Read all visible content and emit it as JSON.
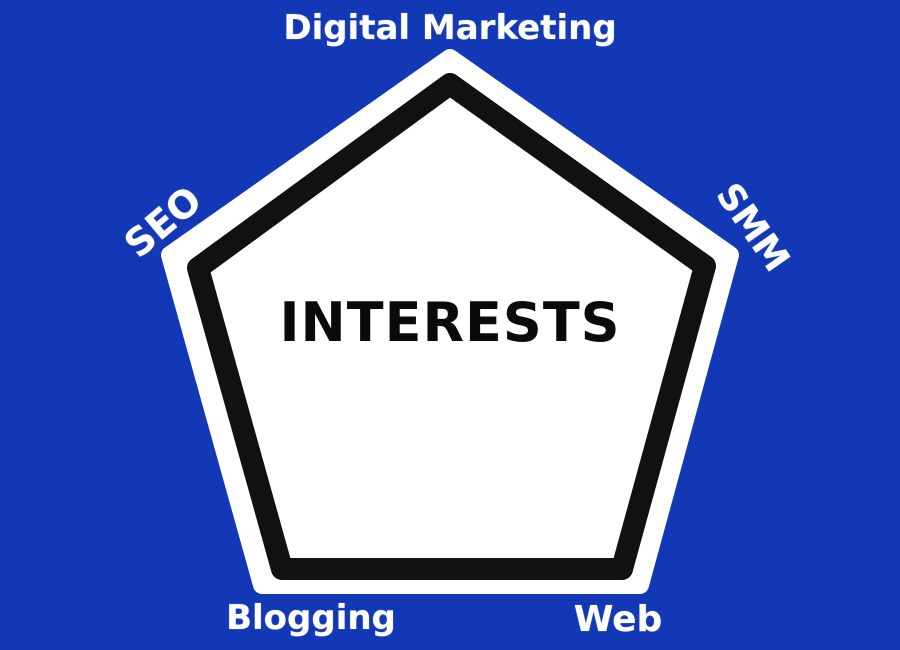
{
  "diagram": {
    "center_label": "INTERESTS",
    "topics": {
      "top": "Digital Marketing",
      "upper_left": "SEO",
      "upper_right": "SMM",
      "lower_left": "Blogging",
      "lower_right": "Web"
    }
  },
  "colors": {
    "background": "#1238b6",
    "pentagon_fill": "#ffffff",
    "pentagon_border": "#111111",
    "label_text": "#ffffff",
    "center_text": "#0a0a0a"
  }
}
